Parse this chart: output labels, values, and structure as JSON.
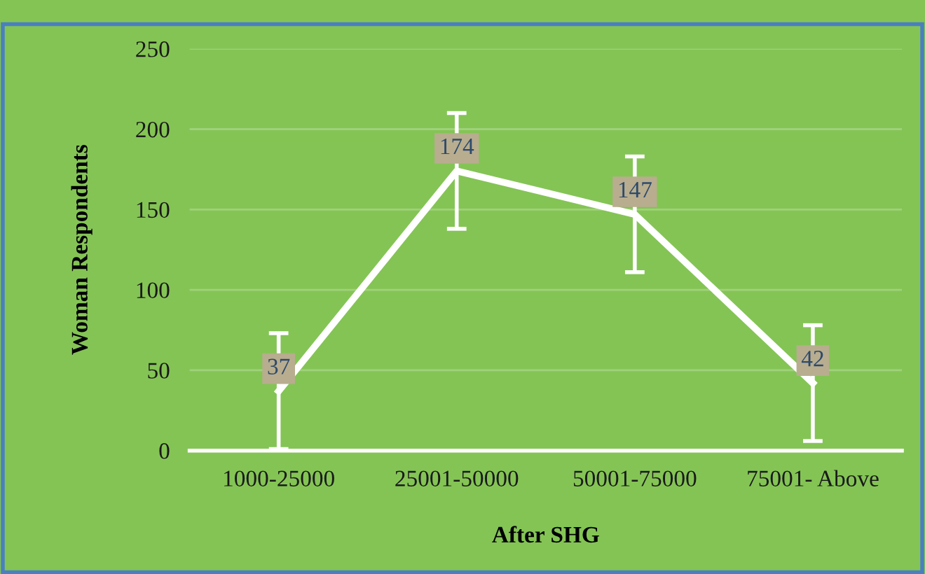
{
  "chart_data": {
    "type": "line",
    "xlabel": "After SHG",
    "ylabel": "Woman Respondents",
    "categories": [
      "1000-25000",
      "25001-50000",
      "50001-75000",
      "75001- Above"
    ],
    "series": [
      {
        "color": "#ffffff",
        "values": [
          37,
          174,
          147,
          42
        ],
        "errors": [
          36,
          36,
          36,
          36
        ]
      }
    ],
    "ylim": [
      0,
      250
    ],
    "yticks": [
      0,
      50,
      100,
      150,
      200,
      250
    ],
    "grid": "y",
    "data_labels": true,
    "marker": "none",
    "line_style": "solid",
    "legend": false
  }
}
